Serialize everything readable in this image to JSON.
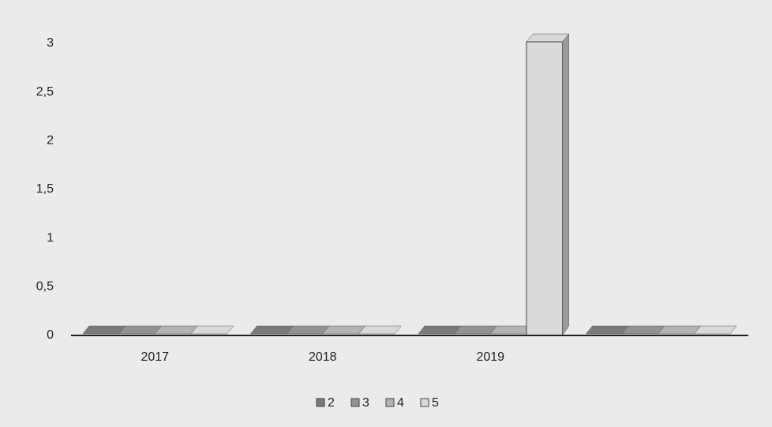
{
  "chart_data": {
    "type": "bar3d",
    "categories": [
      "2017",
      "2018",
      "2019",
      null
    ],
    "series": [
      {
        "name": "2",
        "color": "#7b7b7b",
        "values": [
          0,
          0,
          0,
          0
        ]
      },
      {
        "name": "3",
        "color": "#929292",
        "values": [
          0,
          0,
          0,
          0
        ]
      },
      {
        "name": "4",
        "color": "#b3b3b3",
        "values": [
          0,
          0,
          0,
          0
        ]
      },
      {
        "name": "5",
        "color": "#d9d9d9",
        "values": [
          0,
          0,
          3,
          0
        ]
      }
    ],
    "ylim": [
      0,
      3
    ],
    "yticks": [
      0,
      {
        "value": 0.5,
        "label": "0,5"
      },
      1,
      {
        "value": 1.5,
        "label": "1,5"
      },
      2,
      {
        "value": 2.5,
        "label": "2,5"
      },
      3
    ],
    "grid": false,
    "legend": "bottom"
  }
}
